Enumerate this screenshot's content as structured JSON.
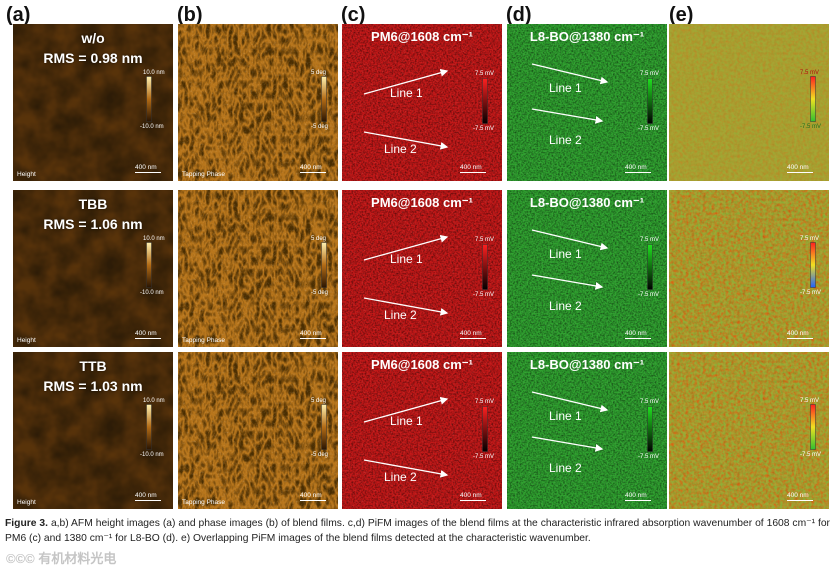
{
  "columns": [
    {
      "label": "(a)"
    },
    {
      "label": "(b)"
    },
    {
      "label": "(c)"
    },
    {
      "label": "(d)"
    },
    {
      "label": "(e)"
    }
  ],
  "rows": [
    {
      "sample": "w/o",
      "rms": "RMS = 0.98 nm"
    },
    {
      "sample": "TBB",
      "rms": "RMS = 1.06 nm"
    },
    {
      "sample": "TTB",
      "rms": "RMS = 1.03 nm"
    }
  ],
  "height_panel": {
    "label": "Height",
    "cbar_max": "10.0 nm",
    "cbar_min": "-10.0 nm",
    "cbar_min_row3": "-10.0 nm",
    "scale": "400 nm"
  },
  "phase_panel": {
    "label": "Tapping Phase",
    "cbar_max": "5 deg",
    "cbar_min": "-5 deg",
    "scale": "400 nm"
  },
  "pm6_panel": {
    "title": "PM6@1608 cm⁻¹",
    "line1": "Line 1",
    "line2": "Line 2",
    "cbar_max": "7.5 mV",
    "cbar_min": "-7.5 mV",
    "scale": "400 nm"
  },
  "l8_panel": {
    "title": "L8-BO@1380 cm⁻¹",
    "line1": "Line 1",
    "line2": "Line 2",
    "cbar_max": "7.5 mV",
    "cbar_min": "-7.5 mV",
    "scale": "400 nm"
  },
  "overlap_panel": {
    "cbar_max": "7.5 mV",
    "cbar_min": "-7.5 mV",
    "scale": "400 nm"
  },
  "colors": {
    "height_dark": "#3a1f05",
    "height_light": "#f3d07a",
    "pm6_red": "#c41818",
    "l8_green": "#2fa12f",
    "overlap_olive": "#a6a534"
  },
  "caption": {
    "fig_label": "Figure 3.",
    "text": "a,b) AFM height images (a) and phase images (b) of blend films. c,d) PiFM images of the blend films at the characteristic infrared absorption wavenumber of 1608 cm⁻¹ for PM6 (c) and 1380 cm⁻¹ for L8-BO (d). e) Overlapping PiFM images of the blend films detected at the characteristic wavenumber."
  },
  "watermark": "©©© 有机材料光电"
}
